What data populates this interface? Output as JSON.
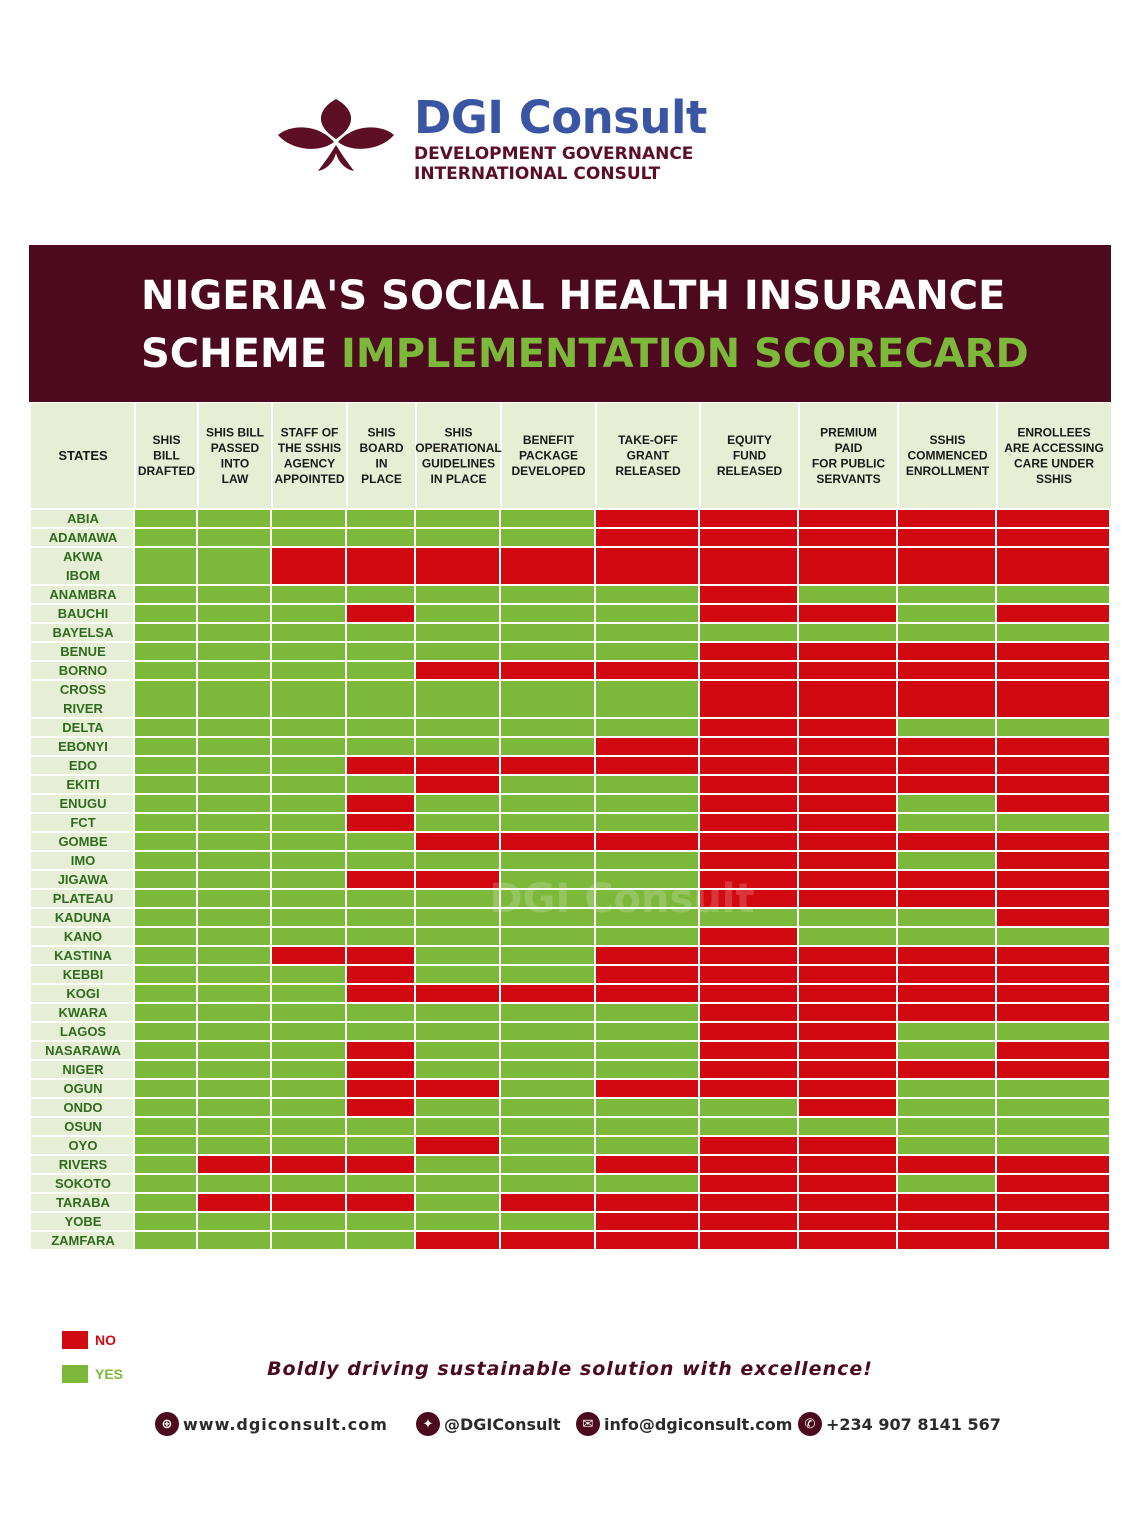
{
  "brand": {
    "name": "DGI Consult",
    "line1": "DEVELOPMENT GOVERNANCE",
    "line2": "INTERNATIONAL CONSULT"
  },
  "title": {
    "line1": "NIGERIA'S SOCIAL HEALTH INSURANCE",
    "line2_plain": "SCHEME",
    "line2_highlight": "IMPLEMENTATION SCORECARD"
  },
  "watermark": "DGI Consult",
  "colors": {
    "yes": "#7cb83a",
    "no": "#d10a11",
    "header_bg": "#e7eed6",
    "banner": "#4d0a1f",
    "accent": "#7cb83a"
  },
  "chart_data": {
    "type": "table",
    "row_header": "STATES",
    "columns": [
      "SHIS BILL DRAFTED",
      "SHIS BILL PASSED INTO LAW",
      "STAFF OF THE SSHIS AGENCY APPOINTED",
      "SHIS BOARD IN PLACE",
      "SHIS OPERATIONAL GUIDELINES IN PLACE",
      "BENEFIT PACKAGE DEVELOPED",
      "TAKE-OFF GRANT RELEASED",
      "EQUITY FUND RELEASED",
      "PREMIUM PAID FOR PUBLIC SERVANTS",
      "SSHIS COMMENCED ENROLLMENT",
      "ENROLLEES ARE ACCESSING CARE UNDER SSHIS"
    ],
    "column_lines": [
      [
        "SHIS",
        "BILL",
        "DRAFTED"
      ],
      [
        "SHIS BILL",
        "PASSED",
        "INTO",
        "LAW"
      ],
      [
        "STAFF OF",
        "THE SSHIS",
        "AGENCY",
        "APPOINTED"
      ],
      [
        "SHIS",
        "BOARD",
        "IN",
        "PLACE"
      ],
      [
        "SHIS",
        "OPERATIONAL",
        "GUIDELINES",
        "IN PLACE"
      ],
      [
        "BENEFIT",
        "PACKAGE",
        "DEVELOPED"
      ],
      [
        "TAKE-OFF",
        "GRANT",
        "RELEASED"
      ],
      [
        "EQUITY",
        "FUND",
        "RELEASED"
      ],
      [
        "PREMIUM",
        "PAID",
        "FOR PUBLIC",
        "SERVANTS"
      ],
      [
        "SSHIS",
        "COMMENCED",
        "ENROLLMENT"
      ],
      [
        "ENROLLEES",
        "ARE ACCESSING",
        "CARE UNDER",
        "SSHIS"
      ]
    ],
    "legend": {
      "no": "NO",
      "yes": "YES"
    },
    "rows": [
      {
        "state": [
          "ABIA"
        ],
        "values": "YYYYYYNNNNN"
      },
      {
        "state": [
          "ADAMAWA"
        ],
        "values": "YYYYYYNNNNN"
      },
      {
        "state": [
          "AKWA",
          "IBOM"
        ],
        "values": "YYNNNNNNNNN"
      },
      {
        "state": [
          "ANAMBRA"
        ],
        "values": "YYYYYYYNYYY"
      },
      {
        "state": [
          "BAUCHI"
        ],
        "values": "YYYNYYYNNYN"
      },
      {
        "state": [
          "BAYELSA"
        ],
        "values": "YYYYYYYYYYY"
      },
      {
        "state": [
          "BENUE"
        ],
        "values": "YYYYYYYNNNN"
      },
      {
        "state": [
          "BORNO"
        ],
        "values": "YYYYNNNNNNN"
      },
      {
        "state": [
          "CROSS",
          "RIVER"
        ],
        "values": "YYYYYYYNNNN"
      },
      {
        "state": [
          "DELTA"
        ],
        "values": "YYYYYYYNNYY"
      },
      {
        "state": [
          "EBONYI"
        ],
        "values": "YYYYYYNNNNN"
      },
      {
        "state": [
          "EDO"
        ],
        "values": "YYYNNNNNNNN"
      },
      {
        "state": [
          "EKITI"
        ],
        "values": "YYYYNYYNNNN"
      },
      {
        "state": [
          "ENUGU"
        ],
        "values": "YYYNYYYNNYN"
      },
      {
        "state": [
          "FCT"
        ],
        "values": "YYYNYYYNNYY"
      },
      {
        "state": [
          "GOMBE"
        ],
        "values": "YYYYNNNNNNN"
      },
      {
        "state": [
          "IMO"
        ],
        "values": "YYYYYYYNNYN"
      },
      {
        "state": [
          "JIGAWA"
        ],
        "values": "YYYNNYYNNNN"
      },
      {
        "state": [
          "PLATEAU"
        ],
        "values": "YYYYYYYNNNN"
      },
      {
        "state": [
          "KADUNA"
        ],
        "values": "YYYYYYYYYYN"
      },
      {
        "state": [
          "KANO"
        ],
        "values": "YYYYYYYNYYY"
      },
      {
        "state": [
          "KASTINA"
        ],
        "values": "YYNNYYNNNNN"
      },
      {
        "state": [
          "KEBBI"
        ],
        "values": "YYYNYYNNNNN"
      },
      {
        "state": [
          "KOGI"
        ],
        "values": "YYYNNNNNNNN"
      },
      {
        "state": [
          "KWARA"
        ],
        "values": "YYYYYYYNNNN"
      },
      {
        "state": [
          "LAGOS"
        ],
        "values": "YYYYYYYNNYY"
      },
      {
        "state": [
          "NASARAWA"
        ],
        "values": "YYYNYYYNNYN"
      },
      {
        "state": [
          "NIGER"
        ],
        "values": "YYYNYYYNNNN"
      },
      {
        "state": [
          "OGUN"
        ],
        "values": "YYYNNYNNNYY"
      },
      {
        "state": [
          "ONDO"
        ],
        "values": "YYYNYYYYNYY"
      },
      {
        "state": [
          "OSUN"
        ],
        "values": "YYYYYYYYYYY"
      },
      {
        "state": [
          "OYO"
        ],
        "values": "YYYYNYYNNYY"
      },
      {
        "state": [
          "RIVERS"
        ],
        "values": "YNNNYYNNNNN"
      },
      {
        "state": [
          "SOKOTO"
        ],
        "values": "YYYYYYYNNYN"
      },
      {
        "state": [
          "TARABA"
        ],
        "values": "YNNNYNNNNNN"
      },
      {
        "state": [
          "YOBE"
        ],
        "values": "YYYYYYNNNNN"
      },
      {
        "state": [
          "ZAMFARA"
        ],
        "values": "YYYYNNNNNNN"
      }
    ]
  },
  "tagline": "Boldly driving sustainable solution with excellence!",
  "contacts": {
    "website": "www.dgiconsult.com",
    "twitter": "@DGIConsult",
    "email": "info@dgiconsult.com",
    "phone": "+234 907 8141 567"
  }
}
